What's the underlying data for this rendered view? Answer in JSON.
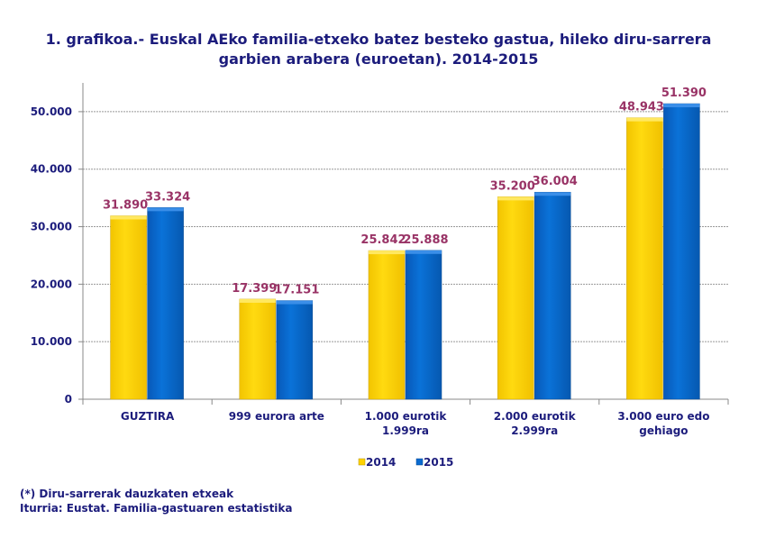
{
  "chart_data": {
    "type": "bar",
    "title_line1": "1. grafikoa.- Euskal AEko familia-etxeko batez besteko gastua, hileko diru-sarrera",
    "title_line2": "garbien arabera (euroetan). 2014-2015",
    "categories": [
      [
        "GUZTIRA"
      ],
      [
        "999 eurora arte"
      ],
      [
        "1.000 eurotik",
        "1.999ra"
      ],
      [
        "2.000 eurotik",
        "2.999ra"
      ],
      [
        "3.000 euro edo",
        "gehiago"
      ]
    ],
    "series": [
      {
        "name": "2014",
        "values": [
          31890,
          17399,
          25842,
          35200,
          48943
        ],
        "labels": [
          "31.890",
          "17.399",
          "25.842",
          "35.200",
          "48.943"
        ],
        "color": "#ffd200"
      },
      {
        "name": "2015",
        "values": [
          33324,
          17151,
          25888,
          36004,
          51390
        ],
        "labels": [
          "33.324",
          "17.151",
          "25.888",
          "36.004",
          "51.390"
        ],
        "color": "#0a6bd0"
      }
    ],
    "yticks": [
      0,
      10000,
      20000,
      30000,
      40000,
      50000
    ],
    "ytick_labels": [
      "0",
      "10.000",
      "20.000",
      "30.000",
      "40.000",
      "50.000"
    ],
    "ylim": [
      0,
      55000
    ],
    "grid": true,
    "legend": "bottom",
    "label_color": "#993366"
  },
  "notes": {
    "footnote": "(*) Diru-sarrerak dauzkaten etxeak",
    "source": "Iturria: Eustat. Familia-gastuaren estatistika"
  }
}
